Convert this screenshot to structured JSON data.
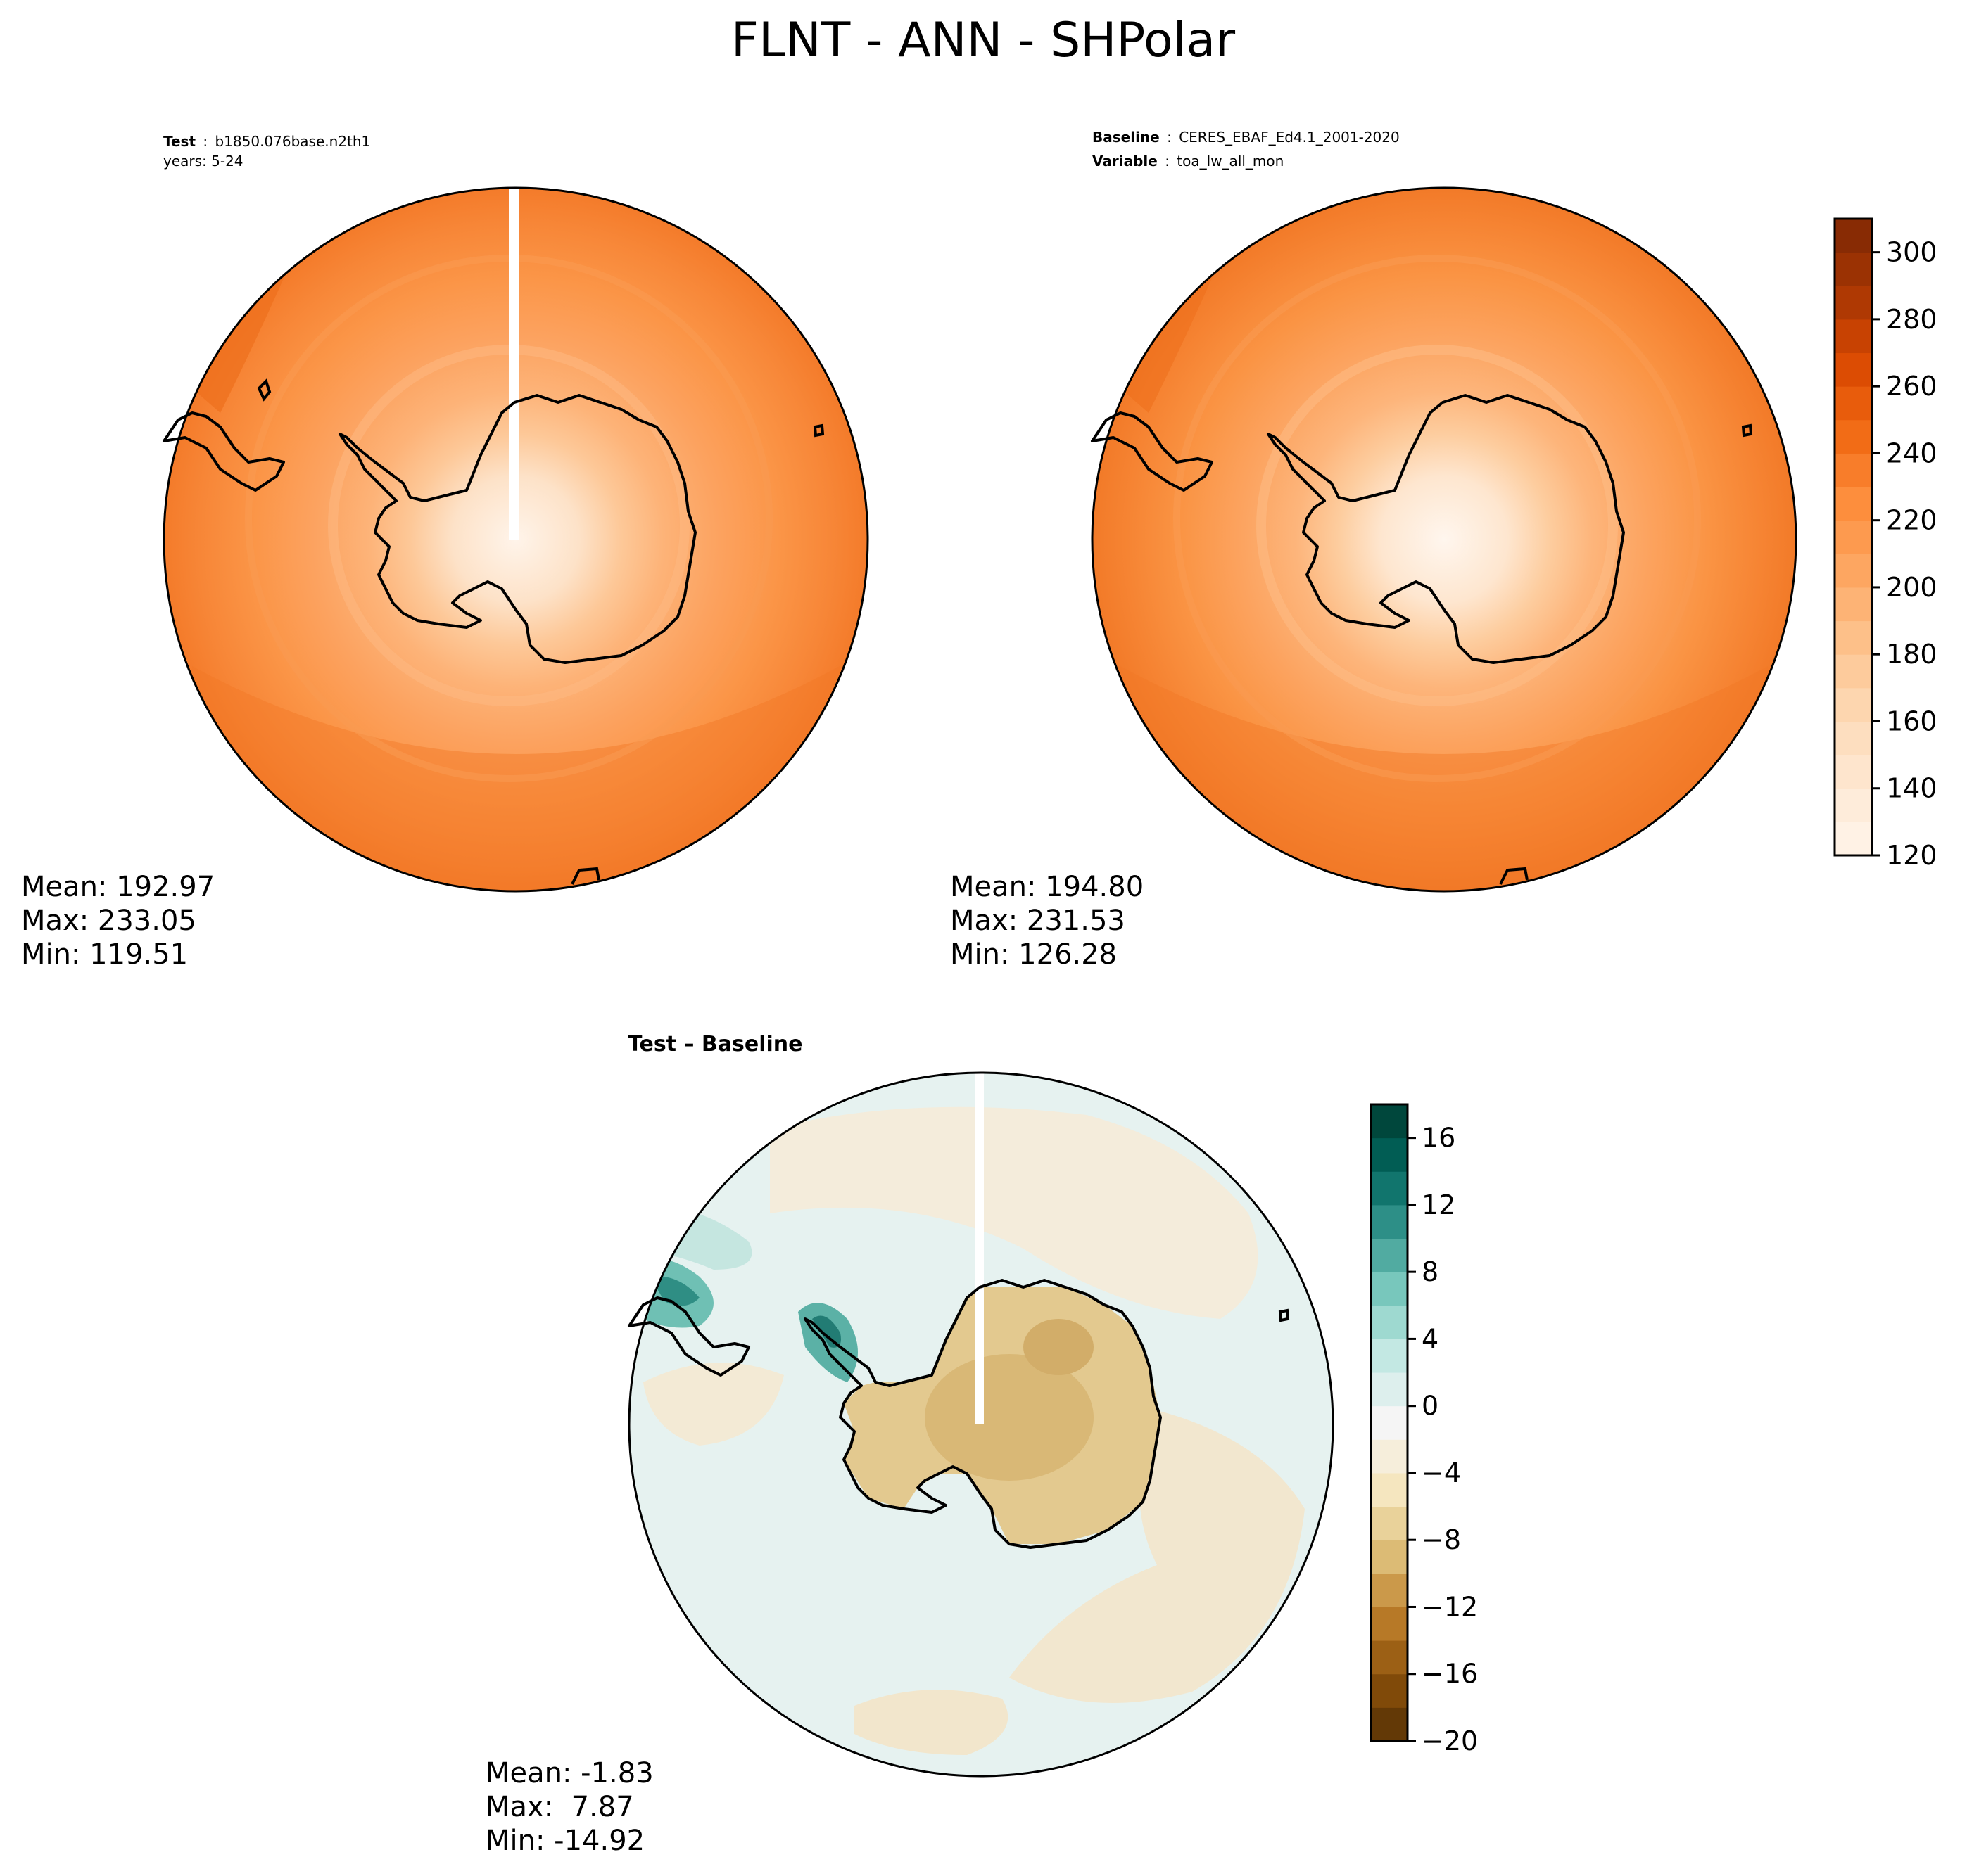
{
  "figure": {
    "title": "FLNT - ANN - SHPolar"
  },
  "panels": {
    "test": {
      "label_bold": "Test",
      "label_sep": ":",
      "label_value": "b1850.076base.n2th1",
      "years": "years: 5-24",
      "stats": [
        "Mean: 192.97",
        "Max: 233.05",
        "Min: 119.51"
      ],
      "has_missing_wedge": true
    },
    "baseline": {
      "label_bold": "Baseline",
      "label_sep": ":",
      "label_value": "CERES_EBAF_Ed4.1_2001-2020",
      "variable_bold": "Variable",
      "variable_value": "toa_lw_all_mon",
      "stats": [
        "Mean: 194.80",
        "Max: 231.53",
        "Min: 126.28"
      ]
    },
    "diff": {
      "title": "Test – Baseline",
      "stats": [
        "Mean: -1.83",
        "Max:  7.87",
        "Min: -14.92"
      ],
      "has_missing_wedge": true
    }
  },
  "colorbars": {
    "field": {
      "colormap": "Oranges",
      "range": [
        120,
        310
      ],
      "step": 10,
      "tick_labels": [
        "120",
        "140",
        "160",
        "180",
        "200",
        "220",
        "240",
        "260",
        "280",
        "300"
      ],
      "tick_values": [
        120,
        140,
        160,
        180,
        200,
        220,
        240,
        260,
        280,
        300
      ],
      "colors": [
        "#fff5eb",
        "#fee8d3",
        "#fdd9b4",
        "#fdc28c",
        "#fda762",
        "#fd8d3c",
        "#f16913",
        "#d94801",
        "#a63603",
        "#7f2704"
      ]
    },
    "diff": {
      "colormap": "BrBG",
      "range": [
        -20,
        18
      ],
      "step": 2,
      "tick_labels": [
        "−20",
        "−16",
        "−12",
        "−8",
        "−4",
        "0",
        "4",
        "8",
        "12",
        "16"
      ],
      "tick_values": [
        -20,
        -16,
        -12,
        -8,
        -4,
        0,
        4,
        8,
        12,
        16
      ],
      "colors": [
        "#543005",
        "#8c510a",
        "#bf812d",
        "#dfc27d",
        "#f6e8c3",
        "#f5f5f5",
        "#c7eae5",
        "#80cdc1",
        "#35978f",
        "#01665e",
        "#003c30"
      ]
    }
  },
  "map_colors": {
    "land_outline": "#000000",
    "field_outer": "#f47f2c",
    "field_mid": "#fb9547",
    "field_inner": "#fdb378",
    "field_pole": "#fff2e6",
    "diff_ocean": "#e5f2f0",
    "diff_tan": "#f3ead7",
    "diff_land": "#dcc08a",
    "diff_teal": "#57b2a6"
  }
}
